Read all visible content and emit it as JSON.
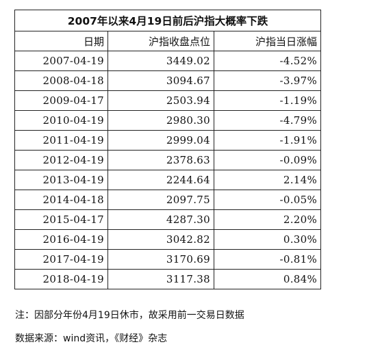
{
  "title": "2007年以来4月19日前后沪指大概率下跌",
  "columns": [
    "日期",
    "沪指收盘点位",
    "沪指当日涨幅"
  ],
  "rows": [
    [
      "2007-04-19",
      "3449.02",
      "-4.52%"
    ],
    [
      "2008-04-18",
      "3094.67",
      "-3.97%"
    ],
    [
      "2009-04-17",
      "2503.94",
      "-1.19%"
    ],
    [
      "2010-04-19",
      "2980.30",
      "-4.79%"
    ],
    [
      "2011-04-19",
      "2999.04",
      "-1.91%"
    ],
    [
      "2012-04-19",
      "2378.63",
      "-0.09%"
    ],
    [
      "2013-04-19",
      "2244.64",
      "2.14%"
    ],
    [
      "2014-04-18",
      "2097.75",
      "-0.05%"
    ],
    [
      "2015-04-17",
      "4287.30",
      "2.20%"
    ],
    [
      "2016-04-19",
      "3042.82",
      "0.30%"
    ],
    [
      "2017-04-19",
      "3170.69",
      "-0.81%"
    ],
    [
      "2018-04-19",
      "3117.38",
      "0.84%"
    ]
  ],
  "note": "注：因部分年份4月19日休市，故采用前一交易日数据",
  "source": "数据来源：wind资讯，《财经》杂志"
}
